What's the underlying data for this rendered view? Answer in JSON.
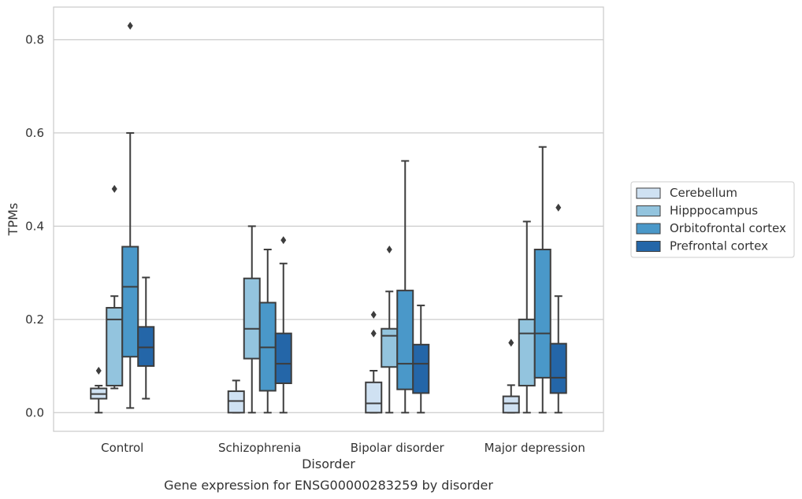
{
  "chart_data": {
    "type": "box",
    "title": "",
    "caption": "Gene expression for ENSG00000283259 by disorder",
    "xlabel": "Disorder",
    "ylabel": "TPMs",
    "ylim": [
      -0.04,
      0.87
    ],
    "yticks": [
      0.0,
      0.2,
      0.4,
      0.6,
      0.8
    ],
    "ytick_labels": [
      "0.0",
      "0.2",
      "0.4",
      "0.6",
      "0.8"
    ],
    "grid": "horizontal",
    "legend_position": "center-right",
    "categories": [
      "Control",
      "Schizophrenia",
      "Bipolar disorder",
      "Major depression"
    ],
    "series": [
      {
        "name": "Cerebellum",
        "color": "#cfe1f2",
        "boxes": [
          {
            "whisker_low": 0.0,
            "q1": 0.03,
            "median": 0.04,
            "q3": 0.052,
            "whisker_high": 0.058,
            "outliers": [
              0.09
            ]
          },
          {
            "whisker_low": 0.0,
            "q1": 0.0,
            "median": 0.025,
            "q3": 0.046,
            "whisker_high": 0.069,
            "outliers": []
          },
          {
            "whisker_low": 0.0,
            "q1": 0.0,
            "median": 0.02,
            "q3": 0.065,
            "whisker_high": 0.09,
            "outliers": [
              0.17,
              0.21
            ]
          },
          {
            "whisker_low": 0.0,
            "q1": 0.0,
            "median": 0.02,
            "q3": 0.035,
            "whisker_high": 0.059,
            "outliers": [
              0.15
            ]
          }
        ]
      },
      {
        "name": "Hipppocampus",
        "color": "#93c4de",
        "boxes": [
          {
            "whisker_low": 0.052,
            "q1": 0.058,
            "median": 0.2,
            "q3": 0.225,
            "whisker_high": 0.25,
            "outliers": [
              0.48
            ]
          },
          {
            "whisker_low": 0.0,
            "q1": 0.116,
            "median": 0.18,
            "q3": 0.288,
            "whisker_high": 0.4,
            "outliers": []
          },
          {
            "whisker_low": 0.0,
            "q1": 0.098,
            "median": 0.165,
            "q3": 0.18,
            "whisker_high": 0.26,
            "outliers": [
              0.35
            ]
          },
          {
            "whisker_low": 0.0,
            "q1": 0.058,
            "median": 0.17,
            "q3": 0.2,
            "whisker_high": 0.41,
            "outliers": []
          }
        ]
      },
      {
        "name": "Orbitofrontal cortex",
        "color": "#4a98c9",
        "boxes": [
          {
            "whisker_low": 0.01,
            "q1": 0.12,
            "median": 0.27,
            "q3": 0.356,
            "whisker_high": 0.6,
            "outliers": [
              0.83
            ]
          },
          {
            "whisker_low": 0.0,
            "q1": 0.047,
            "median": 0.14,
            "q3": 0.236,
            "whisker_high": 0.35,
            "outliers": []
          },
          {
            "whisker_low": 0.0,
            "q1": 0.05,
            "median": 0.105,
            "q3": 0.262,
            "whisker_high": 0.54,
            "outliers": []
          },
          {
            "whisker_low": 0.0,
            "q1": 0.075,
            "median": 0.17,
            "q3": 0.35,
            "whisker_high": 0.57,
            "outliers": []
          }
        ]
      },
      {
        "name": "Prefrontal cortex",
        "color": "#2466a8",
        "boxes": [
          {
            "whisker_low": 0.03,
            "q1": 0.1,
            "median": 0.14,
            "q3": 0.184,
            "whisker_high": 0.29,
            "outliers": []
          },
          {
            "whisker_low": 0.0,
            "q1": 0.063,
            "median": 0.105,
            "q3": 0.17,
            "whisker_high": 0.32,
            "outliers": [
              0.37
            ]
          },
          {
            "whisker_low": 0.0,
            "q1": 0.042,
            "median": 0.105,
            "q3": 0.146,
            "whisker_high": 0.23,
            "outliers": []
          },
          {
            "whisker_low": 0.0,
            "q1": 0.042,
            "median": 0.075,
            "q3": 0.148,
            "whisker_high": 0.25,
            "outliers": [
              0.44
            ]
          }
        ]
      }
    ]
  }
}
